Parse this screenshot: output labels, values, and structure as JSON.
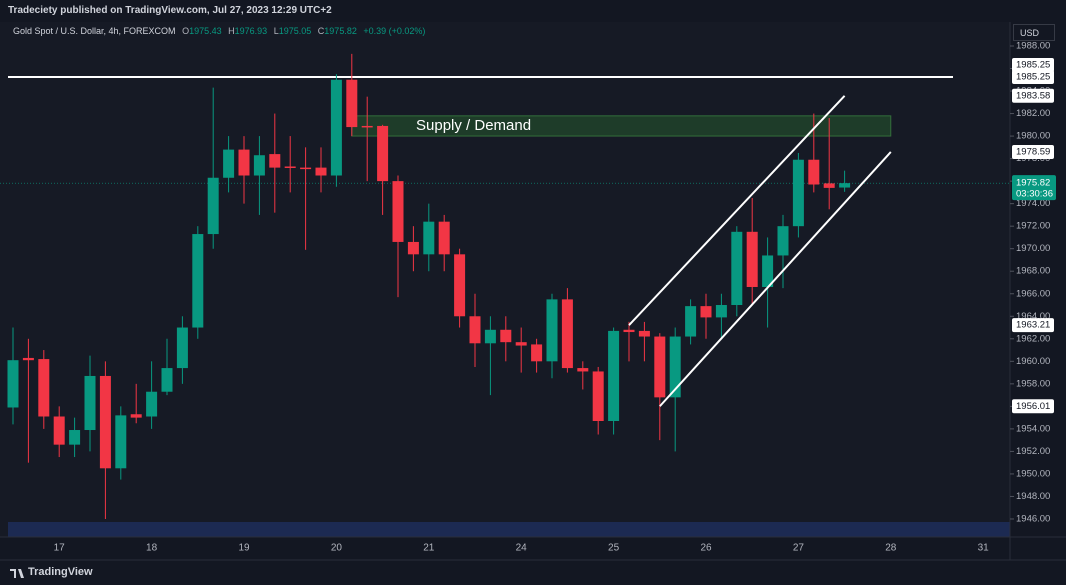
{
  "header": {
    "publisher": "Tradeciety published on TradingView.com, Jul 27, 2023 12:29 UTC+2",
    "currency": "USD",
    "brand": "TradingView"
  },
  "chart_data": {
    "type": "candlestick",
    "title": "Gold Spot / U.S. Dollar, 4h, FOREXCOM",
    "ohlc_keys": [
      "O",
      "H",
      "L",
      "C"
    ],
    "change_label": "+0.39 (+0.02%)",
    "countdown": "03:30:36",
    "up_color": "#089981",
    "down_color": "#f23645",
    "categories": [
      null,
      null,
      null,
      "17",
      null,
      null,
      null,
      null,
      null,
      "18",
      null,
      null,
      null,
      null,
      null,
      "19",
      null,
      null,
      null,
      null,
      null,
      "20",
      null,
      null,
      null,
      null,
      null,
      "21",
      null,
      null,
      null,
      null,
      null,
      "24",
      null,
      null,
      null,
      null,
      null,
      "25",
      null,
      null,
      null,
      null,
      null,
      "26",
      null,
      null,
      null,
      null,
      null,
      "27",
      null,
      null,
      null,
      null,
      null,
      "28",
      null,
      null,
      null,
      null,
      null,
      "31",
      null
    ],
    "open": [
      1955.9,
      1960.3,
      1960.2,
      1955.1,
      1952.6,
      1953.9,
      1958.7,
      1950.5,
      1955.3,
      1955.1,
      1957.3,
      1959.4,
      1963.0,
      1971.3,
      1976.3,
      1978.8,
      1976.5,
      1978.4,
      1977.3,
      1977.2,
      1977.2,
      1976.5,
      1985.0,
      1980.9,
      1980.9,
      1976.0,
      1970.6,
      1969.5,
      1972.4,
      1969.5,
      1964.0,
      1961.6,
      1962.8,
      1961.7,
      1961.5,
      1960.0,
      1965.5,
      1959.4,
      1959.1,
      1954.7,
      1962.8,
      1962.7,
      1962.2,
      1956.8,
      1962.2,
      1964.9,
      1963.9,
      1965.0,
      1971.5,
      1966.6,
      1969.4,
      1972.0,
      1977.9,
      1975.8,
      1975.43,
      null,
      null,
      null,
      null,
      null,
      null,
      null,
      null,
      null,
      null
    ],
    "high": [
      1963.0,
      1962.0,
      1961.0,
      1956.0,
      1955.0,
      1960.5,
      1960.0,
      1956.0,
      1958.0,
      1960.0,
      1962.0,
      1964.0,
      1972.0,
      1984.3,
      1980.0,
      1980.0,
      1980.0,
      1982.0,
      1980.0,
      1979.0,
      1979.0,
      1985.5,
      1987.3,
      1983.5,
      1981.0,
      1976.5,
      1972.0,
      1974.0,
      1973.0,
      1970.0,
      1966.0,
      1964.0,
      1964.0,
      1963.0,
      1962.0,
      1966.0,
      1966.5,
      1960.0,
      1959.5,
      1963.0,
      1963.5,
      1963.5,
      1962.5,
      1963.0,
      1965.5,
      1966.0,
      1966.0,
      1972.0,
      1974.5,
      1971.0,
      1973.0,
      1978.5,
      1982.0,
      1981.6,
      1976.93,
      null,
      null,
      null,
      null,
      null,
      null,
      null,
      null,
      null,
      null
    ],
    "low": [
      1954.4,
      1951.0,
      1954.0,
      1951.5,
      1951.5,
      1952.0,
      1946.0,
      1949.5,
      1954.5,
      1954.0,
      1957.0,
      1958.0,
      1962.0,
      1970.0,
      1975.0,
      1974.0,
      1973.0,
      1973.2,
      1975.0,
      1969.9,
      1975.0,
      1975.5,
      1980.0,
      1976.0,
      1973.0,
      1965.7,
      1968.0,
      1968.0,
      1968.0,
      1963.0,
      1959.5,
      1957.0,
      1960.0,
      1959.0,
      1959.0,
      1958.5,
      1959.0,
      1957.5,
      1953.5,
      1953.5,
      1960.0,
      1960.0,
      1953.0,
      1952.0,
      1961.5,
      1962.0,
      1962.0,
      1964.0,
      1965.0,
      1963.0,
      1966.5,
      1971.0,
      1975.0,
      1973.5,
      1975.05,
      null,
      null,
      null,
      null,
      null,
      null,
      null,
      null,
      null,
      null
    ],
    "close": [
      1960.1,
      1960.1,
      1955.1,
      1952.6,
      1953.9,
      1958.7,
      1950.5,
      1955.2,
      1955.0,
      1957.3,
      1959.4,
      1963.0,
      1971.3,
      1976.3,
      1978.8,
      1976.5,
      1978.3,
      1977.2,
      1977.2,
      1977.1,
      1976.5,
      1985.0,
      1980.8,
      1980.8,
      1976.0,
      1970.6,
      1969.5,
      1972.4,
      1969.5,
      1964.0,
      1961.6,
      1962.8,
      1961.7,
      1961.4,
      1960.0,
      1965.5,
      1959.4,
      1959.1,
      1954.7,
      1962.7,
      1962.6,
      1962.2,
      1956.8,
      1962.2,
      1964.9,
      1963.9,
      1965.0,
      1971.5,
      1966.6,
      1969.4,
      1972.0,
      1977.9,
      1975.7,
      1975.4,
      1975.82,
      null,
      null,
      null,
      null,
      null,
      null,
      null,
      null,
      null,
      null
    ],
    "ylim": [
      1944.4,
      1990.13
    ],
    "yticks": [
      {
        "value": 1946,
        "label": "1946.00"
      },
      {
        "value": 1948,
        "label": "1948.00"
      },
      {
        "value": 1950,
        "label": "1950.00"
      },
      {
        "value": 1952,
        "label": "1952.00"
      },
      {
        "value": 1954,
        "label": "1954.00"
      },
      {
        "value": 1956,
        "label": "1956.00"
      },
      {
        "value": 1958,
        "label": "1958.00"
      },
      {
        "value": 1960,
        "label": "1960.00"
      },
      {
        "value": 1962,
        "label": "1962.00"
      },
      {
        "value": 1964,
        "label": "1964.00"
      },
      {
        "value": 1966,
        "label": "1966.00"
      },
      {
        "value": 1968,
        "label": "1968.00"
      },
      {
        "value": 1970,
        "label": "1970.00"
      },
      {
        "value": 1972,
        "label": "1972.00"
      },
      {
        "value": 1974,
        "label": "1974.00"
      },
      {
        "value": 1976,
        "label": "1976.00"
      },
      {
        "value": 1978,
        "label": "1978.00"
      },
      {
        "value": 1980,
        "label": "1980.00"
      },
      {
        "value": 1982,
        "label": "1982.00"
      },
      {
        "value": 1984,
        "label": "1984.00"
      },
      {
        "value": 1986,
        "label": "1986.00"
      },
      {
        "value": 1988,
        "label": "1988.00"
      }
    ],
    "hline": {
      "value": 1985.25
    },
    "zone": {
      "label": "Supply / Demand",
      "x": [
        22,
        57
      ],
      "price": [
        1980.0,
        1981.8
      ]
    },
    "trend_lines": [
      {
        "from": [
          40,
          1963.21
        ],
        "to": [
          54,
          1983.58
        ]
      },
      {
        "from": [
          42,
          1956.01
        ],
        "to": [
          57,
          1978.59
        ]
      }
    ]
  }
}
